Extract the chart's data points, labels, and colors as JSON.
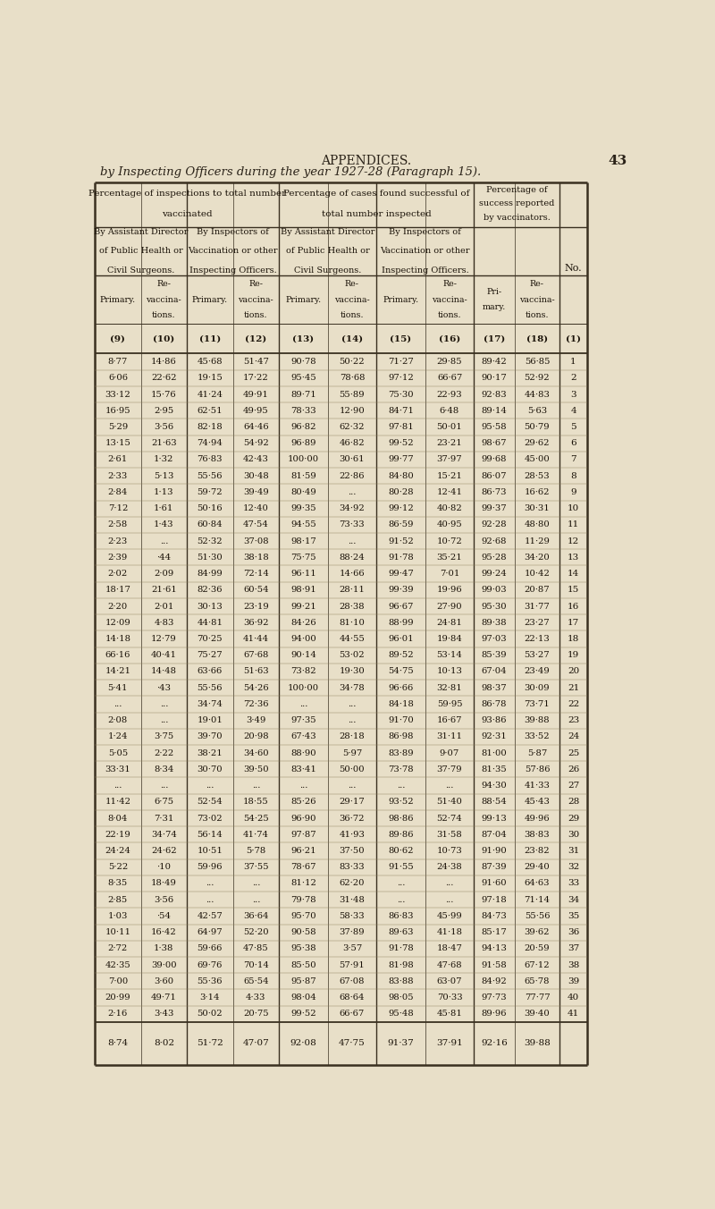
{
  "title_appendices": "APPENDICES.",
  "page_num": "43",
  "subtitle": "by Inspecting Officers during the year 1927-28 (Paragraph 15).",
  "bg_color": "#e8dfc8",
  "rows": [
    [
      "8·77",
      "14·86",
      "45·68",
      "51·47",
      "90·78",
      "50·22",
      "71·27",
      "29·85",
      "89·42",
      "56·85",
      "1"
    ],
    [
      "6·06",
      "22·62",
      "19·15",
      "17·22",
      "95·45",
      "78·68",
      "97·12",
      "66·67",
      "90·17",
      "52·92",
      "2"
    ],
    [
      "33·12",
      "15·76",
      "41·24",
      "49·91",
      "89·71",
      "55·89",
      "75·30",
      "22·93",
      "92·83",
      "44·83",
      "3"
    ],
    [
      "16·95",
      "2·95",
      "62·51",
      "49·95",
      "78·33",
      "12·90",
      "84·71",
      "6·48",
      "89·14",
      "5·63",
      "4"
    ],
    [
      "5·29",
      "3·56",
      "82·18",
      "64·46",
      "96·82",
      "62·32",
      "97·81",
      "50·01",
      "95·58",
      "50·79",
      "5"
    ],
    [
      "13·15",
      "21·63",
      "74·94",
      "54·92",
      "96·89",
      "46·82",
      "99·52",
      "23·21",
      "98·67",
      "29·62",
      "6"
    ],
    [
      "2·61",
      "1·32",
      "76·83",
      "42·43",
      "100·00",
      "30·61",
      "99·77",
      "37·97",
      "99·68",
      "45·00",
      "7"
    ],
    [
      "2·33",
      "5·13",
      "55·56",
      "30·48",
      "81·59",
      "22·86",
      "84·80",
      "15·21",
      "86·07",
      "28·53",
      "8"
    ],
    [
      "2·84",
      "1·13",
      "59·72",
      "39·49",
      "80·49",
      "...",
      "80·28",
      "12·41",
      "86·73",
      "16·62",
      "9"
    ],
    [
      "7·12",
      "1·61",
      "50·16",
      "12·40",
      "99·35",
      "34·92",
      "99·12",
      "40·82",
      "99·37",
      "30·31",
      "10"
    ],
    [
      "2·58",
      "1·43",
      "60·84",
      "47·54",
      "94·55",
      "73·33",
      "86·59",
      "40·95",
      "92·28",
      "48·80",
      "11"
    ],
    [
      "2·23",
      "...",
      "52·32",
      "37·08",
      "98·17",
      "...",
      "91·52",
      "10·72",
      "92·68",
      "11·29",
      "12"
    ],
    [
      "2·39",
      "·44",
      "51·30",
      "38·18",
      "75·75",
      "88·24",
      "91·78",
      "35·21",
      "95·28",
      "34·20",
      "13"
    ],
    [
      "2·02",
      "2·09",
      "84·99",
      "72·14",
      "96·11",
      "14·66",
      "99·47",
      "7·01",
      "99·24",
      "10·42",
      "14"
    ],
    [
      "18·17",
      "21·61",
      "82·36",
      "60·54",
      "98·91",
      "28·11",
      "99·39",
      "19·96",
      "99·03",
      "20·87",
      "15"
    ],
    [
      "2·20",
      "2·01",
      "30·13",
      "23·19",
      "99·21",
      "28·38",
      "96·67",
      "27·90",
      "95·30",
      "31·77",
      "16"
    ],
    [
      "12·09",
      "4·83",
      "44·81",
      "36·92",
      "84·26",
      "81·10",
      "88·99",
      "24·81",
      "89·38",
      "23·27",
      "17"
    ],
    [
      "14·18",
      "12·79",
      "70·25",
      "41·44",
      "94·00",
      "44·55",
      "96·01",
      "19·84",
      "97·03",
      "22·13",
      "18"
    ],
    [
      "66·16",
      "40·41",
      "75·27",
      "67·68",
      "90·14",
      "53·02",
      "89·52",
      "53·14",
      "85·39",
      "53·27",
      "19"
    ],
    [
      "14·21",
      "14·48",
      "63·66",
      "51·63",
      "73·82",
      "19·30",
      "54·75",
      "10·13",
      "67·04",
      "23·49",
      "20"
    ],
    [
      "5·41",
      "·43",
      "55·56",
      "54·26",
      "100·00",
      "34·78",
      "96·66",
      "32·81",
      "98·37",
      "30·09",
      "21"
    ],
    [
      "...",
      "...",
      "34·74",
      "72·36",
      "...",
      "...",
      "84·18",
      "59·95",
      "86·78",
      "73·71",
      "22"
    ],
    [
      "2·08",
      "...",
      "19·01",
      "3·49",
      "97·35",
      "...",
      "91·70",
      "16·67",
      "93·86",
      "39·88",
      "23"
    ],
    [
      "1·24",
      "3·75",
      "39·70",
      "20·98",
      "67·43",
      "28·18",
      "86·98",
      "31·11",
      "92·31",
      "33·52",
      "24"
    ],
    [
      "5·05",
      "2·22",
      "38·21",
      "34·60",
      "88·90",
      "5·97",
      "83·89",
      "9·07",
      "81·00",
      "5·87",
      "25"
    ],
    [
      "33·31",
      "8·34",
      "30·70",
      "39·50",
      "83·41",
      "50·00",
      "73·78",
      "37·79",
      "81·35",
      "57·86",
      "26"
    ],
    [
      "...",
      "...",
      "...",
      "...",
      "...",
      "...",
      "...",
      "...",
      "94·30",
      "41·33",
      "27"
    ],
    [
      "11·42",
      "6·75",
      "52·54",
      "18·55",
      "85·26",
      "29·17",
      "93·52",
      "51·40",
      "88·54",
      "45·43",
      "28"
    ],
    [
      "8·04",
      "7·31",
      "73·02",
      "54·25",
      "96·90",
      "36·72",
      "98·86",
      "52·74",
      "99·13",
      "49·96",
      "29"
    ],
    [
      "22·19",
      "34·74",
      "56·14",
      "41·74",
      "97·87",
      "41·93",
      "89·86",
      "31·58",
      "87·04",
      "38·83",
      "30"
    ],
    [
      "24·24",
      "24·62",
      "10·51",
      "5·78",
      "96·21",
      "37·50",
      "80·62",
      "10·73",
      "91·90",
      "23·82",
      "31"
    ],
    [
      "5·22",
      "·10",
      "59·96",
      "37·55",
      "78·67",
      "83·33",
      "91·55",
      "24·38",
      "87·39",
      "29·40",
      "32"
    ],
    [
      "8·35",
      "18·49",
      "...",
      "...",
      "81·12",
      "62·20",
      "...",
      "...",
      "91·60",
      "64·63",
      "33"
    ],
    [
      "2·85",
      "3·56",
      "...",
      "...",
      "79·78",
      "31·48",
      "...",
      "...",
      "97·18",
      "71·14",
      "34"
    ],
    [
      "1·03",
      "·54",
      "42·57",
      "36·64",
      "95·70",
      "58·33",
      "86·83",
      "45·99",
      "84·73",
      "55·56",
      "35"
    ],
    [
      "10·11",
      "16·42",
      "64·97",
      "52·20",
      "90·58",
      "37·89",
      "89·63",
      "41·18",
      "85·17",
      "39·62",
      "36"
    ],
    [
      "2·72",
      "1·38",
      "59·66",
      "47·85",
      "95·38",
      "3·57",
      "91·78",
      "18·47",
      "94·13",
      "20·59",
      "37"
    ],
    [
      "42·35",
      "39·00",
      "69·76",
      "70·14",
      "85·50",
      "57·91",
      "81·98",
      "47·68",
      "91·58",
      "67·12",
      "38"
    ],
    [
      "7·00",
      "3·60",
      "55·36",
      "65·54",
      "95·87",
      "67·08",
      "83·88",
      "63·07",
      "84·92",
      "65·78",
      "39"
    ],
    [
      "20·99",
      "49·71",
      "3·14",
      "4·33",
      "98·04",
      "68·64",
      "98·05",
      "70·33",
      "97·73",
      "77·77",
      "40"
    ],
    [
      "2·16",
      "3·43",
      "50·02",
      "20·75",
      "99·52",
      "66·67",
      "95·48",
      "45·81",
      "89·96",
      "39·40",
      "41"
    ]
  ],
  "footer_row": [
    "8·74",
    "8·02",
    "51·72",
    "47·07",
    "92·08",
    "47·75",
    "91·37",
    "37·91",
    "92·16",
    "39·88",
    ""
  ]
}
